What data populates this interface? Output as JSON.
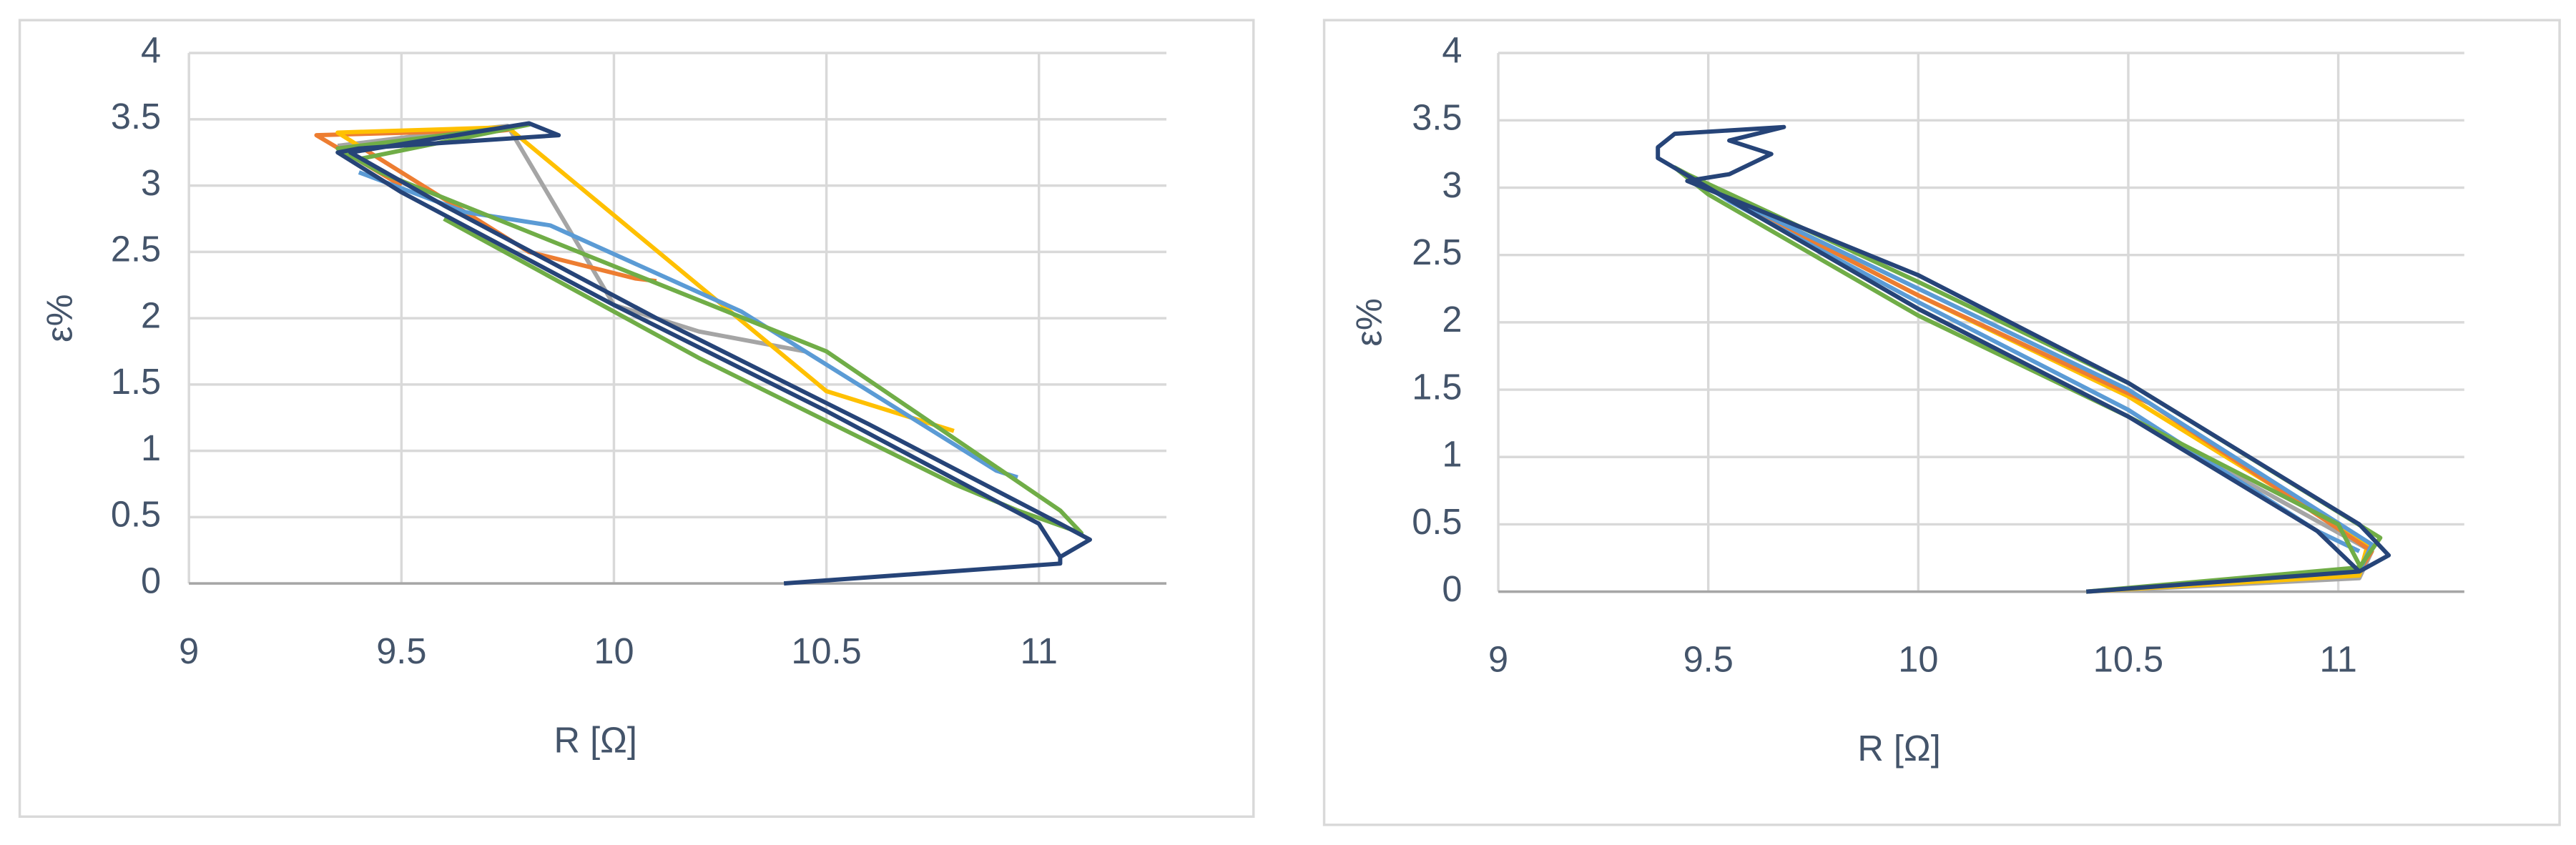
{
  "chart_data": [
    {
      "type": "line",
      "xlabel": "R [Ω]",
      "ylabel": "ε%",
      "xlim": [
        9,
        11.3
      ],
      "ylim": [
        0,
        4
      ],
      "xticks": [
        9,
        9.5,
        10,
        10.5,
        11
      ],
      "yticks": [
        0,
        0.5,
        1,
        1.5,
        2,
        2.5,
        3,
        3.5,
        4
      ],
      "grid": true,
      "series": [
        {
          "color": "#a5a5a5",
          "x": [
            9.35,
            9.6,
            9.75,
            10,
            10.2,
            10.45
          ],
          "values": [
            3.3,
            3.4,
            3.45,
            2.1,
            1.9,
            1.75
          ]
        },
        {
          "color": "#ed7d31",
          "x": [
            9.5,
            9.3,
            9.75,
            9.4,
            9.8,
            10.05,
            10.1
          ],
          "values": [
            3.0,
            3.38,
            3.42,
            3.3,
            2.5,
            2.3,
            2.28
          ]
        },
        {
          "color": "#ffc000",
          "x": [
            9.4,
            9.35,
            9.75,
            10.5,
            10.8
          ],
          "values": [
            3.3,
            3.4,
            3.44,
            1.45,
            1.15
          ]
        },
        {
          "color": "#5b9bd5",
          "x": [
            9.4,
            9.65,
            9.85,
            10.3,
            10.9,
            10.95
          ],
          "values": [
            3.1,
            2.8,
            2.7,
            2.05,
            0.85,
            0.8
          ]
        },
        {
          "color": "#70ad47",
          "x": [
            9.4,
            9.8,
            9.35,
            9.45,
            10.5,
            11.05,
            11.1,
            10.95,
            10.8,
            10.2,
            9.6
          ],
          "values": [
            3.2,
            3.46,
            3.28,
            3.1,
            1.75,
            0.55,
            0.38,
            0.55,
            0.75,
            1.7,
            2.75
          ]
        },
        {
          "color": "#264478",
          "x": [
            10.4,
            11.05,
            11.05,
            11.12,
            11.05,
            10.6,
            10.1,
            9.6,
            9.38,
            9.8,
            9.87,
            9.4,
            9.35,
            9.5,
            10.0,
            10.5,
            11.0,
            11.05
          ],
          "values": [
            0,
            0.15,
            0.2,
            0.33,
            0.45,
            1.2,
            2.0,
            2.85,
            3.25,
            3.47,
            3.38,
            3.28,
            3.25,
            2.95,
            2.1,
            1.3,
            0.45,
            0.2
          ]
        }
      ]
    },
    {
      "type": "line",
      "xlabel": "R [Ω]",
      "ylabel": "ε%",
      "xlim": [
        9,
        11.3
      ],
      "ylim": [
        0,
        4
      ],
      "xticks": [
        9,
        9.5,
        10,
        10.5,
        11
      ],
      "yticks": [
        0,
        0.5,
        1,
        1.5,
        2,
        2.5,
        3,
        3.5,
        4
      ],
      "grid": true,
      "series": [
        {
          "color": "#a5a5a5",
          "x": [
            10.4,
            11.05,
            11.08,
            10.5,
            10,
            9.5
          ],
          "values": [
            0,
            0.1,
            0.3,
            1.3,
            2.1,
            3.0
          ]
        },
        {
          "color": "#ffc000",
          "x": [
            10.4,
            11.05,
            11.07,
            10.5,
            10.0,
            9.5
          ],
          "values": [
            0,
            0.12,
            0.35,
            1.45,
            2.2,
            3.0
          ]
        },
        {
          "color": "#ed7d31",
          "x": [
            11.05,
            11.08,
            10.55,
            10.0,
            9.5
          ],
          "values": [
            0.15,
            0.3,
            1.4,
            2.2,
            3.0
          ]
        },
        {
          "color": "#5b9bd5",
          "x": [
            10.4,
            11.05,
            11.08,
            10.5,
            10.0,
            9.5,
            9.55,
            10.0,
            10.5,
            10.9,
            10.95,
            11.05
          ],
          "values": [
            0,
            0.15,
            0.35,
            1.5,
            2.25,
            3.0,
            2.9,
            2.15,
            1.35,
            0.55,
            0.45,
            0.3
          ]
        },
        {
          "color": "#70ad47",
          "x": [
            10.4,
            11.05,
            11.1,
            10.5,
            10.0,
            9.45,
            9.42,
            9.5,
            10.0,
            10.5,
            11.0,
            11.05
          ],
          "values": [
            0,
            0.18,
            0.4,
            1.55,
            2.3,
            3.1,
            3.15,
            2.95,
            2.05,
            1.3,
            0.5,
            0.2
          ]
        },
        {
          "color": "#264478",
          "x": [
            10.4,
            11.05,
            11.12,
            11.05,
            10.5,
            10.0,
            9.45,
            9.55,
            9.65,
            9.55,
            9.68,
            9.42,
            9.38,
            9.38,
            9.5,
            10.0,
            10.5,
            10.95,
            11.05
          ],
          "values": [
            0,
            0.15,
            0.27,
            0.5,
            1.55,
            2.35,
            3.05,
            3.1,
            3.25,
            3.35,
            3.45,
            3.4,
            3.3,
            3.22,
            3.0,
            2.1,
            1.3,
            0.45,
            0.15
          ]
        }
      ]
    }
  ]
}
